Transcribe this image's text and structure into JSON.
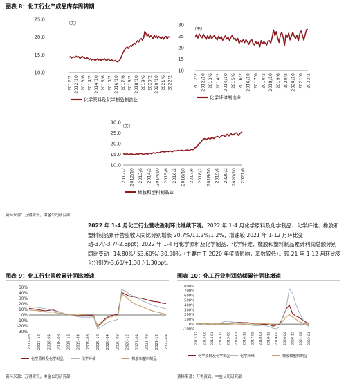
{
  "figure8": {
    "title": "图表 8：化工行业产成品库存周转期",
    "source": "资料来源：万得资讯，中金公司研究部"
  },
  "figure9": {
    "title": "图表 9：化工行业营收累计同比增速",
    "source": "资料来源：万得资讯，中金公司研究部"
  },
  "figure10": {
    "title": "图表 10：化工行业利润总额累计同比增速",
    "source": "资料来源：万得资讯，中金公司研究部"
  },
  "paragraph": {
    "heading": "2022 年 1-4 月化工行业营收盈利环比继续下滑。",
    "body": "2022 年 1-4 月化学原料及化学制品、化学纤维、橡胶和塑料制品累计营业收入同比分别增长 20.7%/11.2%/1.2%，增速较 2021 年 1-12 月环比变动-3.4/-3.7/-2.6ppt；2022 年 1-4 月化学原料及化学制品、化学纤维、橡胶和塑料制品累计利润总额分别同比变动+14.80%/-53.60%/-30.90%（主要由于 2020 年疫情影响，基数较低）。较 21 年 1-12 月环比变化分别为-3.60/+1.30 /-1.30ppt。"
  },
  "chart_data": [
    {
      "id": "chem-inventory",
      "type": "line",
      "unit": "（天）",
      "ylim": [
        10,
        25
      ],
      "yticks": [
        "10.0",
        "15.0",
        "20.0",
        "25.0"
      ],
      "xticks": [
        "2012/2",
        "2012/10",
        "2013/6",
        "2014/2",
        "2014/10",
        "2015/6",
        "2016/2",
        "2016/10",
        "2017/6",
        "2018/2",
        "2018/10",
        "2019/6",
        "2020/2",
        "2020/10",
        "2021/6",
        "2022/2"
      ],
      "series": [
        {
          "name": "化学原料及化学制品制造业",
          "color": "#8b1a1f",
          "values": [
            14.3,
            14.5,
            14.1,
            14.3,
            14.4,
            14.2,
            14.6,
            14.3,
            14.5,
            14.0,
            14.2,
            14.6,
            14.3,
            14.1,
            13.8,
            14.2,
            14.0,
            13.6,
            13.9,
            13.5,
            13.8,
            13.7,
            13.4,
            13.6,
            13.9,
            13.5,
            13.8,
            13.4,
            13.7,
            13.6,
            13.9,
            13.5,
            13.4,
            13.8,
            13.5,
            13.3,
            13.6,
            13.3,
            13.2,
            13.4,
            13.1,
            13.0,
            13.2,
            13.6,
            14.3,
            15.2,
            15.8,
            16.5,
            16.9,
            17.2,
            16.8,
            17.3,
            17.6,
            17.4,
            17.9,
            18.3,
            18.0,
            18.6,
            19.0,
            18.6,
            19.3,
            19.6,
            19.1,
            19.8,
            21.6,
            21.0,
            20.3,
            20.8,
            19.9,
            20.4,
            20.1,
            19.6,
            20.5,
            19.9,
            20.3,
            19.7,
            20.2,
            19.8,
            19.6,
            20.1,
            19.4,
            20.0,
            20.2,
            19.5,
            20.1,
            20.0
          ]
        }
      ]
    },
    {
      "id": "fiber-inventory",
      "type": "line",
      "unit": "（天）",
      "ylim": [
        10,
        30
      ],
      "yticks": [
        "10",
        "15",
        "20",
        "25",
        "30"
      ],
      "xticks": [
        "2012/2",
        "2012/10",
        "2013/6",
        "2014/2",
        "2014/10",
        "2015/6",
        "2016/2",
        "2016/10",
        "2017/6",
        "2018/2",
        "2018/10",
        "2019/6",
        "2020/2",
        "2020/10",
        "2021/6",
        "2022/2"
      ],
      "series": [
        {
          "name": "化学纤维制造业",
          "color": "#8b1a1f",
          "values": [
            24.5,
            25.8,
            24.2,
            26.0,
            25.1,
            24.3,
            25.9,
            24.8,
            23.6,
            25.2,
            24.1,
            25.6,
            23.9,
            24.7,
            25.4,
            24.2,
            23.4,
            25.0,
            24.1,
            24.9,
            23.2,
            24.3,
            25.3,
            23.8,
            24.6,
            23.1,
            24.5,
            25.5,
            23.7,
            24.2,
            22.9,
            24.1,
            21.9,
            23.1,
            22.4,
            23.6,
            22.2,
            23.5,
            22.6,
            21.5,
            22.9,
            23.7,
            22.0,
            21.2,
            22.8,
            21.6,
            22.3,
            20.4,
            23.1,
            21.8,
            22.6,
            21.9,
            21.2,
            22.7,
            23.1,
            22.0,
            24.5,
            27.8,
            25.2,
            27.0,
            24.3,
            22.3,
            25.6,
            26.8,
            24.6,
            21.0,
            25.8,
            24.5,
            26.4,
            23.4,
            25.0,
            26.8,
            25.1,
            24.0,
            25.5,
            22.9,
            26.1,
            27.3,
            25.6,
            23.3,
            25.7,
            27.9,
            28.0
          ]
        }
      ]
    },
    {
      "id": "rubber-inventory",
      "type": "line",
      "unit": "（天）",
      "ylim": [
        10,
        30
      ],
      "yticks": [
        "10.0",
        "15.0",
        "20.0",
        "25.0",
        "30.0"
      ],
      "xticks": [
        "2012/2",
        "2012/10",
        "2013/6",
        "2014/2",
        "2014/10",
        "2015/6",
        "2016/2",
        "2016/10",
        "2017/6",
        "2018/2",
        "2018/10",
        "2019/6",
        "2020/2",
        "2020/10",
        "2021/6"
      ],
      "series": [
        {
          "name": "橡胶和塑料制品业",
          "color": "#8b1a1f",
          "values": [
            15.4,
            15.0,
            15.3,
            14.9,
            15.2,
            15.1,
            14.8,
            15.3,
            15.0,
            15.5,
            15.2,
            15.0,
            15.4,
            15.1,
            15.6,
            15.3,
            15.8,
            15.5,
            15.9,
            15.7,
            16.2,
            16.4,
            16.1,
            16.5,
            16.3,
            16.6,
            16.2,
            16.8,
            16.5,
            16.9,
            16.7,
            17.0,
            16.6,
            16.9,
            17.1,
            16.8,
            17.4,
            17.2,
            18.1,
            18.5,
            19.9,
            20.6,
            21.8,
            22.4,
            21.9,
            22.6,
            22.2,
            22.9,
            22.4,
            23.1,
            23.4,
            22.8,
            23.6,
            24.0,
            23.2,
            24.4,
            23.6,
            24.8,
            23.9,
            24.6,
            25.1,
            23.8,
            24.9,
            25.6
          ]
        }
      ]
    },
    {
      "id": "revenue-yoy",
      "type": "line",
      "ylim": [
        -30,
        50
      ],
      "yticks": [
        "-30%",
        "-20%",
        "-10%",
        "0%",
        "10%",
        "20%",
        "30%",
        "40%",
        "50%"
      ],
      "xticks": [
        "2017-08",
        "2017-12",
        "2018-04",
        "2018-08",
        "2018-12",
        "2019-04",
        "2019-08",
        "2019-12",
        "2020-04",
        "2020-08",
        "2020-12",
        "2021-04",
        "2021-08",
        "2021-12",
        "2022-04"
      ],
      "series": [
        {
          "name": "化学原料及化学制品",
          "color": "#8b1a1f",
          "values": [
            12,
            11,
            10,
            8.5,
            7.5,
            8.5,
            9,
            6.5,
            4.5,
            1.5,
            0.5,
            -0.5,
            -1.5,
            -1,
            -1.5,
            -1,
            -1,
            -20,
            -13,
            -6,
            -2,
            0,
            1,
            41,
            37,
            34,
            33,
            31,
            30,
            28,
            26,
            24.5,
            24,
            21.5,
            20.7
          ]
        },
        {
          "name": "化学纤维",
          "color": "#a9b7c4",
          "values": [
            15,
            14,
            14,
            12.5,
            11.5,
            10,
            8,
            6,
            4.5,
            2,
            0,
            -1,
            -3,
            -4,
            -4,
            -4,
            -3.5,
            -25,
            -21,
            -16,
            -12,
            -10,
            -8,
            46,
            43,
            37,
            33,
            30,
            26,
            23,
            20,
            17,
            15,
            13,
            11.2
          ]
        },
        {
          "name": "橡胶和塑料制品",
          "color": "#c4a16a",
          "values": [
            9,
            8.5,
            8,
            6.5,
            5.5,
            5,
            5.5,
            3.5,
            3,
            1.5,
            0.5,
            0.5,
            0,
            0.5,
            1,
            1.5,
            1.5,
            -22,
            -15,
            -8,
            -4,
            -2,
            -1,
            38,
            33,
            26,
            21,
            18,
            15,
            12,
            9,
            6.5,
            5,
            3,
            1.2
          ]
        }
      ]
    },
    {
      "id": "profit-yoy",
      "type": "line",
      "ylim": [
        -100,
        800
      ],
      "yticks": [
        "-100%",
        "0%",
        "100%",
        "200%",
        "300%",
        "400%",
        "500%",
        "600%",
        "700%",
        "800%"
      ],
      "xticks": [
        "2012-12",
        "2013-08",
        "2014-04",
        "2014-12",
        "2015-08",
        "2016-04",
        "2016-12",
        "2017-08",
        "2018-04",
        "2018-12",
        "2019-08",
        "2020-04",
        "2020-12",
        "2021-08",
        "2022-04"
      ],
      "series": [
        {
          "name": "化学原料及化学制品",
          "color": "#8b1a1f",
          "values": [
            10,
            12,
            14,
            10,
            5,
            2,
            -2,
            0,
            5,
            12,
            18,
            25,
            32,
            38,
            34,
            28,
            30,
            20,
            10,
            5,
            0,
            -8,
            -14,
            -20,
            -45,
            -20,
            0,
            140,
            310,
            400,
            220,
            170,
            140,
            90,
            50,
            14.8
          ]
        },
        {
          "name": "化学纤维",
          "color": "#a9b7c4",
          "values": [
            5,
            10,
            15,
            -5,
            -10,
            -20,
            -15,
            0,
            30,
            55,
            60,
            45,
            40,
            30,
            24,
            10,
            0,
            -20,
            -30,
            -35,
            -30,
            -20,
            -40,
            -60,
            -90,
            -100,
            -60,
            160,
            320,
            740,
            650,
            420,
            260,
            120,
            20,
            -53.6
          ]
        },
        {
          "name": "橡胶和塑料制品",
          "color": "#c4a16a",
          "values": [
            8,
            10,
            12,
            8,
            6,
            5,
            6,
            8,
            10,
            12,
            9,
            6,
            2,
            0,
            -5,
            -3,
            0,
            3,
            6,
            8,
            10,
            8,
            6,
            4,
            -20,
            -10,
            10,
            60,
            140,
            200,
            150,
            100,
            60,
            30,
            0,
            -30.9
          ]
        }
      ]
    }
  ]
}
